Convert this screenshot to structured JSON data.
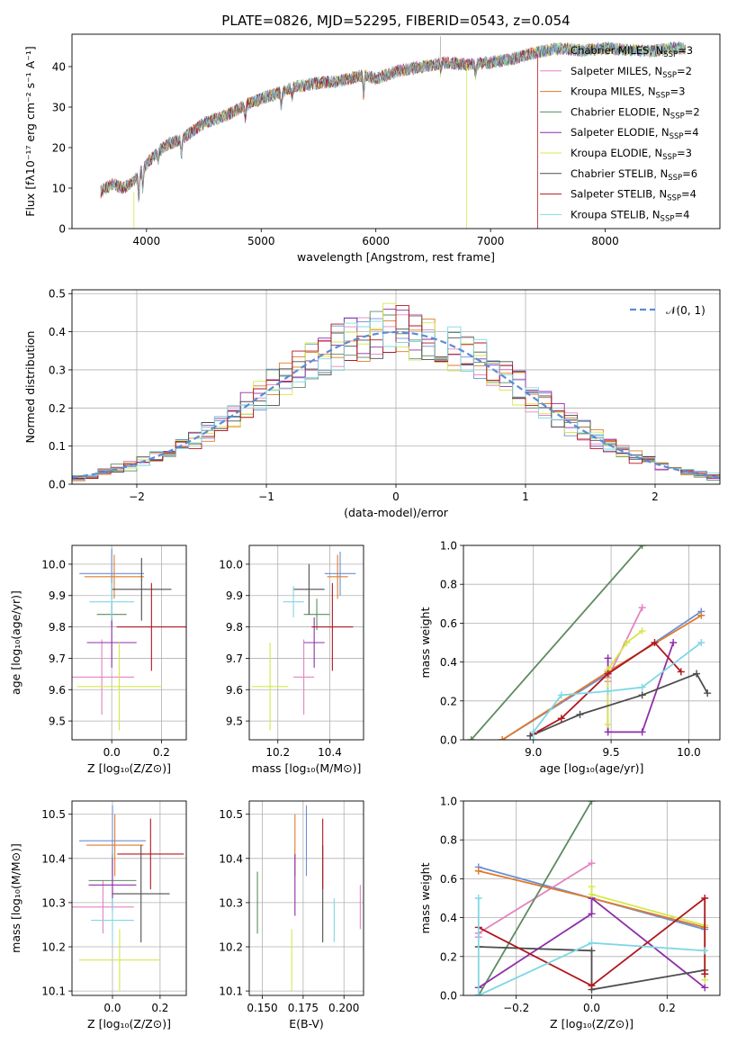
{
  "title": "PLATE=0826, MJD=52295, FIBERID=0543, z=0.054",
  "colors": {
    "chabrier_miles": "#6a8fd6",
    "salpeter_miles": "#e383c0",
    "kroupa_miles": "#e07b2a",
    "chabrier_elodie": "#5e8c61",
    "salpeter_elodie": "#8e2fa8",
    "kroupa_elodie": "#d4e84a",
    "chabrier_stelib": "#4d4d4d",
    "salpeter_stelib": "#b0171f",
    "kroupa_stelib": "#7fd8e4",
    "normal_curve": "#5b8bd6"
  },
  "legend_models": [
    {
      "label": "Chabrier MILES, N",
      "sub": "SSP",
      "tail": "=3",
      "color": "#6a8fd6"
    },
    {
      "label": "Salpeter MILES, N",
      "sub": "SSP",
      "tail": "=2",
      "color": "#e383c0"
    },
    {
      "label": "Kroupa MILES, N",
      "sub": "SSP",
      "tail": "=3",
      "color": "#e07b2a"
    },
    {
      "label": "Chabrier ELODIE, N",
      "sub": "SSP",
      "tail": "=2",
      "color": "#5e8c61"
    },
    {
      "label": "Salpeter ELODIE, N",
      "sub": "SSP",
      "tail": "=4",
      "color": "#8e2fa8"
    },
    {
      "label": "Kroupa ELODIE, N",
      "sub": "SSP",
      "tail": "=3",
      "color": "#d4e84a"
    },
    {
      "label": "Chabrier STELIB, N",
      "sub": "SSP",
      "tail": "=6",
      "color": "#4d4d4d"
    },
    {
      "label": "Salpeter STELIB, N",
      "sub": "SSP",
      "tail": "=4",
      "color": "#b0171f"
    },
    {
      "label": "Kroupa STELIB, N",
      "sub": "SSP",
      "tail": "=4",
      "color": "#7fd8e4"
    }
  ],
  "chart_data": [
    {
      "id": "spectrum",
      "type": "line",
      "xlabel": "wavelength [Angstrom, rest frame]",
      "ylabel": "Flux [fλ10⁻¹⁷ erg cm⁻² s⁻¹ A⁻¹]",
      "xlim": [
        3350,
        9000
      ],
      "ylim": [
        0,
        48
      ],
      "xticks": [
        4000,
        5000,
        6000,
        7000,
        8000
      ],
      "yticks": [
        0,
        10,
        20,
        30,
        40
      ],
      "grid": false,
      "legend_position": "top-right",
      "continuum": {
        "x": [
          3600,
          3700,
          3800,
          3900,
          3950,
          4000,
          4100,
          4200,
          4300,
          4400,
          4500,
          4700,
          4900,
          5100,
          5300,
          5500,
          5700,
          5900,
          6000,
          6200,
          6400,
          6600,
          6800,
          7000,
          7200,
          7400,
          7600,
          7800,
          8000,
          8200,
          8400,
          8600,
          8700
        ],
        "y": [
          9,
          11,
          10,
          12,
          14,
          16,
          19,
          21,
          22,
          24,
          26,
          28,
          31,
          33,
          35,
          36,
          36.5,
          38,
          37,
          39,
          40,
          41,
          40.5,
          41,
          42,
          43.5,
          44.5,
          44,
          44.5,
          44.2,
          43.8,
          44.6,
          44.5
        ]
      }
    },
    {
      "id": "residuals",
      "type": "line",
      "xlabel": "(data-model)/error",
      "ylabel": "Normed distribution",
      "xlim": [
        -2.5,
        2.5
      ],
      "ylim": [
        0,
        0.51
      ],
      "xticks": [
        -2,
        -1,
        0,
        1,
        2
      ],
      "yticks": [
        0.0,
        0.1,
        0.2,
        0.3,
        0.4,
        0.5
      ],
      "grid": true,
      "legend_position": "top-right",
      "legend_label": "𝒩(0, 1)",
      "bin_width": 0.1,
      "bins_from": -2.5
    },
    {
      "id": "age_vs_Z",
      "type": "scatter",
      "xlabel": "Z [log₁₀(Z/Z⊙)]",
      "ylabel": "age  [log₁₀(age/yr)]",
      "xlim": [
        -0.16,
        0.3
      ],
      "ylim": [
        9.44,
        10.06
      ],
      "xticks": [
        0.0,
        0.2
      ],
      "yticks": [
        9.5,
        9.6,
        9.7,
        9.8,
        9.9,
        10.0
      ],
      "grid": true,
      "points": [
        {
          "model": "chabrier_miles",
          "x": 0.0,
          "xerr": 0.13,
          "y": 9.97,
          "yerr": 0.08
        },
        {
          "model": "salpeter_miles",
          "x": -0.04,
          "xerr": 0.13,
          "y": 9.64,
          "yerr": 0.12
        },
        {
          "model": "kroupa_miles",
          "x": 0.01,
          "xerr": 0.12,
          "y": 9.96,
          "yerr": 0.07
        },
        {
          "model": "chabrier_elodie",
          "x": 0.0,
          "xerr": 0.06,
          "y": 9.84,
          "yerr": 0.04
        },
        {
          "model": "salpeter_elodie",
          "x": 0.0,
          "xerr": 0.1,
          "y": 9.75,
          "yerr": 0.08
        },
        {
          "model": "kroupa_elodie",
          "x": 0.03,
          "xerr": 0.17,
          "y": 9.61,
          "yerr": 0.14
        },
        {
          "model": "chabrier_stelib",
          "x": 0.12,
          "xerr": 0.12,
          "y": 9.92,
          "yerr": 0.1
        },
        {
          "model": "salpeter_stelib",
          "x": 0.16,
          "xerr": 0.14,
          "y": 9.8,
          "yerr": 0.14
        },
        {
          "model": "kroupa_stelib",
          "x": 0.0,
          "xerr": 0.09,
          "y": 9.88,
          "yerr": 0.06
        }
      ]
    },
    {
      "id": "age_vs_mass",
      "type": "scatter",
      "xlabel": "mass [log₁₀(M/M⊙)]",
      "ylabel": "",
      "xlim": [
        10.09,
        10.53
      ],
      "ylim": [
        9.44,
        10.06
      ],
      "xticks": [
        10.2,
        10.4
      ],
      "yticks": [
        9.5,
        9.6,
        9.7,
        9.8,
        9.9,
        10.0
      ],
      "grid": true,
      "points": [
        {
          "model": "chabrier_miles",
          "x": 10.44,
          "xerr": 0.06,
          "y": 9.97,
          "yerr": 0.07
        },
        {
          "model": "salpeter_miles",
          "x": 10.3,
          "xerr": 0.04,
          "y": 9.64,
          "yerr": 0.12
        },
        {
          "model": "kroupa_miles",
          "x": 10.43,
          "xerr": 0.04,
          "y": 9.96,
          "yerr": 0.07
        },
        {
          "model": "chabrier_elodie",
          "x": 10.35,
          "xerr": 0.05,
          "y": 9.84,
          "yerr": 0.05
        },
        {
          "model": "salpeter_elodie",
          "x": 10.34,
          "xerr": 0.04,
          "y": 9.75,
          "yerr": 0.08
        },
        {
          "model": "kroupa_elodie",
          "x": 10.17,
          "xerr": 0.07,
          "y": 9.61,
          "yerr": 0.14
        },
        {
          "model": "chabrier_stelib",
          "x": 10.32,
          "xerr": 0.06,
          "y": 9.92,
          "yerr": 0.08
        },
        {
          "model": "salpeter_stelib",
          "x": 10.41,
          "xerr": 0.08,
          "y": 9.8,
          "yerr": 0.14
        },
        {
          "model": "kroupa_stelib",
          "x": 10.26,
          "xerr": 0.04,
          "y": 9.88,
          "yerr": 0.05
        }
      ]
    },
    {
      "id": "weight_vs_age",
      "type": "line",
      "xlabel": "age  [log₁₀(age/yr)]",
      "ylabel": "mass weight",
      "xlim": [
        8.55,
        10.2
      ],
      "ylim": [
        0,
        1.0
      ],
      "xticks": [
        9.0,
        9.5,
        10.0
      ],
      "yticks": [
        0.0,
        0.2,
        0.4,
        0.6,
        0.8,
        1.0
      ],
      "grid": true,
      "series": [
        {
          "model": "chabrier_miles",
          "x": [
            8.8,
            9.48,
            10.08
          ],
          "y": [
            0.0,
            0.34,
            0.66
          ]
        },
        {
          "model": "salpeter_miles",
          "x": [
            9.48,
            9.48,
            9.7
          ],
          "y": [
            0.3,
            0.32,
            0.68
          ]
        },
        {
          "model": "kroupa_miles",
          "x": [
            8.8,
            9.48,
            10.08
          ],
          "y": [
            0.0,
            0.35,
            0.64
          ]
        },
        {
          "model": "chabrier_elodie",
          "x": [
            8.6,
            9.7
          ],
          "y": [
            0.0,
            1.0
          ]
        },
        {
          "model": "salpeter_elodie",
          "x": [
            9.48,
            9.48,
            9.7,
            9.9
          ],
          "y": [
            0.42,
            0.04,
            0.04,
            0.5
          ]
        },
        {
          "model": "kroupa_elodie",
          "x": [
            9.48,
            9.48,
            9.6,
            9.7
          ],
          "y": [
            0.08,
            0.36,
            0.5,
            0.56
          ]
        },
        {
          "model": "chabrier_stelib",
          "x": [
            8.98,
            9.3,
            9.7,
            10.05,
            10.12
          ],
          "y": [
            0.02,
            0.13,
            0.23,
            0.34,
            0.24
          ]
        },
        {
          "model": "salpeter_stelib",
          "x": [
            9.0,
            9.18,
            9.48,
            9.78,
            9.95
          ],
          "y": [
            0.03,
            0.11,
            0.34,
            0.5,
            0.35
          ]
        },
        {
          "model": "kroupa_stelib",
          "x": [
            9.0,
            9.0,
            9.18,
            9.48,
            9.7,
            10.08
          ],
          "y": [
            0.0,
            0.04,
            0.23,
            0.25,
            0.27,
            0.5
          ]
        }
      ]
    },
    {
      "id": "mass_vs_Z",
      "type": "scatter",
      "xlabel": "Z [log₁₀(Z/Z⊙)]",
      "ylabel": "mass [log₁₀(M/M⊙)]",
      "xlim": [
        -0.17,
        0.31
      ],
      "ylim": [
        10.09,
        10.53
      ],
      "xticks": [
        0.0,
        0.2
      ],
      "yticks": [
        10.1,
        10.2,
        10.3,
        10.4,
        10.5
      ],
      "grid": true,
      "points": [
        {
          "model": "chabrier_miles",
          "x": 0.0,
          "xerr": 0.14,
          "y": 10.44,
          "yerr": 0.08
        },
        {
          "model": "salpeter_miles",
          "x": -0.04,
          "xerr": 0.13,
          "y": 10.29,
          "yerr": 0.06
        },
        {
          "model": "kroupa_miles",
          "x": 0.01,
          "xerr": 0.12,
          "y": 10.43,
          "yerr": 0.07
        },
        {
          "model": "chabrier_elodie",
          "x": 0.0,
          "xerr": 0.1,
          "y": 10.35,
          "yerr": 0.06
        },
        {
          "model": "salpeter_elodie",
          "x": 0.0,
          "xerr": 0.1,
          "y": 10.34,
          "yerr": 0.06
        },
        {
          "model": "kroupa_elodie",
          "x": 0.03,
          "xerr": 0.17,
          "y": 10.17,
          "yerr": 0.07
        },
        {
          "model": "chabrier_stelib",
          "x": 0.12,
          "xerr": 0.12,
          "y": 10.32,
          "yerr": 0.11
        },
        {
          "model": "salpeter_stelib",
          "x": 0.16,
          "xerr": 0.14,
          "y": 10.41,
          "yerr": 0.08
        },
        {
          "model": "kroupa_stelib",
          "x": 0.0,
          "xerr": 0.09,
          "y": 10.26,
          "yerr": 0.05
        }
      ]
    },
    {
      "id": "mass_vs_EBV",
      "type": "scatter",
      "xlabel": "E(B-V)",
      "ylabel": "",
      "xlim": [
        0.142,
        0.212
      ],
      "ylim": [
        10.09,
        10.53
      ],
      "xticks": [
        0.15,
        0.175,
        0.2
      ],
      "yticks": [
        10.1,
        10.2,
        10.3,
        10.4,
        10.5
      ],
      "grid": true,
      "points": [
        {
          "model": "chabrier_miles",
          "x": 0.177,
          "xerr": 0,
          "y": 10.44,
          "yerr": 0.08
        },
        {
          "model": "salpeter_miles",
          "x": 0.21,
          "xerr": 0,
          "y": 10.29,
          "yerr": 0.05
        },
        {
          "model": "kroupa_miles",
          "x": 0.17,
          "xerr": 0,
          "y": 10.43,
          "yerr": 0.07
        },
        {
          "model": "chabrier_elodie",
          "x": 0.147,
          "xerr": 0,
          "y": 10.3,
          "yerr": 0.07
        },
        {
          "model": "salpeter_elodie",
          "x": 0.17,
          "xerr": 0,
          "y": 10.34,
          "yerr": 0.07
        },
        {
          "model": "kroupa_elodie",
          "x": 0.168,
          "xerr": 0,
          "y": 10.17,
          "yerr": 0.07
        },
        {
          "model": "chabrier_stelib",
          "x": 0.187,
          "xerr": 0,
          "y": 10.32,
          "yerr": 0.11
        },
        {
          "model": "salpeter_stelib",
          "x": 0.187,
          "xerr": 0,
          "y": 10.41,
          "yerr": 0.08
        },
        {
          "model": "kroupa_stelib",
          "x": 0.194,
          "xerr": 0,
          "y": 10.26,
          "yerr": 0.05
        }
      ]
    },
    {
      "id": "weight_vs_Z",
      "type": "line",
      "xlabel": "Z [log₁₀(Z/Z⊙)]",
      "ylabel": "mass weight",
      "xlim": [
        -0.34,
        0.34
      ],
      "ylim": [
        0,
        1.0
      ],
      "xticks": [
        -0.2,
        0.0,
        0.2
      ],
      "yticks": [
        0.0,
        0.2,
        0.4,
        0.6,
        0.8,
        1.0
      ],
      "grid": true,
      "series": [
        {
          "model": "chabrier_miles",
          "x": [
            -0.3,
            0.0,
            0.3
          ],
          "y": [
            0.66,
            0.5,
            0.34
          ]
        },
        {
          "model": "salpeter_miles",
          "x": [
            -0.3,
            -0.3,
            0.0
          ],
          "y": [
            0.3,
            0.32,
            0.68
          ]
        },
        {
          "model": "kroupa_miles",
          "x": [
            -0.3,
            0.0,
            0.3
          ],
          "y": [
            0.64,
            0.5,
            0.35
          ]
        },
        {
          "model": "chabrier_elodie",
          "x": [
            -0.3,
            0.0
          ],
          "y": [
            0.0,
            1.0
          ]
        },
        {
          "model": "salpeter_elodie",
          "x": [
            -0.3,
            0.0,
            0.0,
            0.3
          ],
          "y": [
            0.04,
            0.42,
            0.5,
            0.04
          ]
        },
        {
          "model": "kroupa_elodie",
          "x": [
            0.0,
            0.0,
            0.3,
            0.3
          ],
          "y": [
            0.56,
            0.52,
            0.36,
            0.08
          ]
        },
        {
          "model": "chabrier_stelib",
          "x": [
            -0.3,
            0.0,
            0.0,
            0.3
          ],
          "y": [
            0.25,
            0.23,
            0.03,
            0.13
          ]
        },
        {
          "model": "salpeter_stelib",
          "x": [
            -0.3,
            0.0,
            0.3,
            0.3
          ],
          "y": [
            0.35,
            0.05,
            0.5,
            0.11
          ]
        },
        {
          "model": "kroupa_stelib",
          "x": [
            -0.3,
            -0.3,
            0.0,
            0.3
          ],
          "y": [
            0.5,
            0.0,
            0.27,
            0.23
          ]
        }
      ]
    }
  ]
}
